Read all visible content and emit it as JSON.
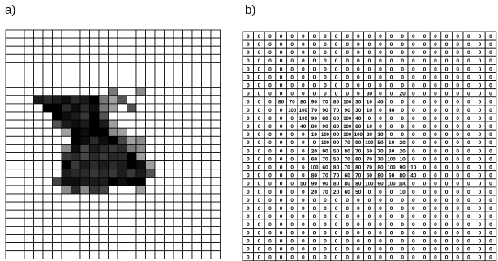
{
  "panel_a": {
    "label": "a)"
  },
  "panel_b": {
    "label": "b)",
    "rows": [
      [
        0,
        0,
        0,
        0,
        0,
        0,
        0,
        0,
        0,
        0,
        0,
        0,
        0,
        0,
        0,
        0,
        0,
        0,
        0,
        0,
        0,
        0,
        0
      ],
      [
        0,
        0,
        0,
        0,
        0,
        0,
        0,
        0,
        0,
        0,
        0,
        0,
        0,
        0,
        0,
        0,
        0,
        0,
        0,
        0,
        0,
        0,
        0
      ],
      [
        0,
        0,
        0,
        0,
        0,
        0,
        0,
        0,
        0,
        0,
        0,
        0,
        0,
        0,
        0,
        0,
        0,
        0,
        0,
        0,
        0,
        0,
        0
      ],
      [
        0,
        0,
        0,
        0,
        0,
        0,
        0,
        0,
        0,
        0,
        0,
        0,
        0,
        0,
        0,
        0,
        0,
        0,
        0,
        0,
        0,
        0,
        0
      ],
      [
        0,
        0,
        0,
        0,
        0,
        0,
        0,
        0,
        0,
        0,
        0,
        0,
        0,
        0,
        0,
        0,
        0,
        0,
        0,
        0,
        0,
        0,
        0
      ],
      [
        0,
        0,
        0,
        0,
        0,
        0,
        0,
        0,
        0,
        0,
        0,
        0,
        0,
        0,
        0,
        0,
        0,
        0,
        0,
        0,
        0,
        0,
        0
      ],
      [
        0,
        0,
        0,
        0,
        0,
        0,
        0,
        0,
        0,
        0,
        0,
        0,
        0,
        0,
        0,
        0,
        0,
        0,
        0,
        0,
        0,
        0,
        0
      ],
      [
        0,
        0,
        0,
        0,
        0,
        0,
        0,
        0,
        0,
        0,
        0,
        30,
        0,
        0,
        20,
        0,
        0,
        0,
        0,
        0,
        0,
        0,
        0
      ],
      [
        0,
        0,
        0,
        80,
        70,
        80,
        90,
        70,
        80,
        100,
        30,
        10,
        40,
        0,
        0,
        0,
        0,
        0,
        0,
        0,
        0,
        0,
        0
      ],
      [
        0,
        0,
        0,
        0,
        100,
        100,
        70,
        90,
        70,
        90,
        30,
        10,
        0,
        40,
        0,
        0,
        0,
        0,
        0,
        0,
        0,
        0,
        0
      ],
      [
        0,
        0,
        0,
        0,
        0,
        100,
        90,
        80,
        60,
        100,
        40,
        0,
        0,
        0,
        0,
        0,
        0,
        0,
        0,
        0,
        0,
        0,
        0
      ],
      [
        0,
        0,
        0,
        0,
        0,
        40,
        80,
        90,
        80,
        100,
        80,
        10,
        0,
        0,
        0,
        0,
        0,
        0,
        0,
        0,
        0,
        0,
        0
      ],
      [
        0,
        0,
        0,
        0,
        0,
        0,
        10,
        100,
        90,
        100,
        100,
        20,
        10,
        0,
        0,
        0,
        0,
        0,
        0,
        0,
        0,
        0,
        0
      ],
      [
        0,
        0,
        0,
        0,
        0,
        0,
        0,
        100,
        90,
        70,
        90,
        100,
        50,
        10,
        20,
        0,
        0,
        0,
        0,
        0,
        0,
        0,
        0
      ],
      [
        0,
        0,
        0,
        0,
        0,
        0,
        20,
        90,
        50,
        80,
        70,
        60,
        70,
        30,
        20,
        0,
        0,
        0,
        0,
        0,
        0,
        0,
        0
      ],
      [
        0,
        0,
        0,
        0,
        0,
        0,
        60,
        70,
        50,
        70,
        60,
        70,
        70,
        100,
        10,
        0,
        0,
        0,
        0,
        0,
        0,
        0,
        0
      ],
      [
        0,
        0,
        0,
        0,
        0,
        0,
        100,
        60,
        80,
        70,
        80,
        70,
        80,
        100,
        90,
        10,
        0,
        0,
        0,
        0,
        0,
        0,
        0
      ],
      [
        0,
        0,
        0,
        0,
        0,
        0,
        80,
        70,
        70,
        60,
        70,
        60,
        80,
        60,
        80,
        40,
        0,
        0,
        0,
        0,
        0,
        0,
        0
      ],
      [
        0,
        0,
        0,
        0,
        0,
        50,
        90,
        90,
        80,
        80,
        80,
        100,
        90,
        100,
        100,
        0,
        0,
        0,
        0,
        0,
        0,
        0,
        0
      ],
      [
        0,
        0,
        0,
        0,
        0,
        0,
        20,
        70,
        20,
        60,
        50,
        0,
        0,
        0,
        10,
        0,
        0,
        0,
        0,
        0,
        0,
        0,
        0
      ],
      [
        0,
        0,
        0,
        0,
        0,
        0,
        0,
        0,
        0,
        0,
        0,
        0,
        0,
        0,
        0,
        0,
        0,
        0,
        0,
        0,
        0,
        0,
        0
      ],
      [
        0,
        0,
        0,
        0,
        0,
        0,
        0,
        0,
        0,
        0,
        0,
        0,
        0,
        0,
        0,
        0,
        0,
        0,
        0,
        0,
        0,
        0,
        0
      ],
      [
        0,
        0,
        0,
        0,
        0,
        0,
        0,
        0,
        0,
        0,
        0,
        0,
        0,
        0,
        0,
        0,
        0,
        0,
        0,
        0,
        0,
        0,
        0
      ],
      [
        0,
        0,
        0,
        0,
        0,
        0,
        0,
        0,
        0,
        0,
        0,
        0,
        0,
        0,
        0,
        0,
        0,
        0,
        0,
        0,
        0,
        0,
        0
      ],
      [
        0,
        0,
        0,
        0,
        0,
        0,
        0,
        0,
        0,
        0,
        0,
        0,
        0,
        0,
        0,
        0,
        0,
        0,
        0,
        0,
        0,
        0,
        0
      ],
      [
        0,
        0,
        0,
        0,
        0,
        0,
        0,
        0,
        0,
        0,
        0,
        0,
        0,
        0,
        0,
        0,
        0,
        0,
        0,
        0,
        0,
        0,
        0
      ],
      [
        0,
        0,
        0,
        0,
        0,
        0,
        0,
        0,
        0,
        0,
        0,
        0,
        0,
        0,
        0,
        0,
        0,
        0,
        0,
        0,
        0,
        0,
        0
      ],
      [
        0,
        0,
        0,
        0,
        0,
        0,
        0,
        0,
        0,
        0,
        0,
        0,
        0,
        0,
        0,
        0,
        0,
        0,
        0,
        0,
        0,
        0,
        0
      ]
    ]
  },
  "colors": {
    "grid_line": "#000000",
    "background": "#ffffff",
    "pixel_full": "#000000"
  }
}
